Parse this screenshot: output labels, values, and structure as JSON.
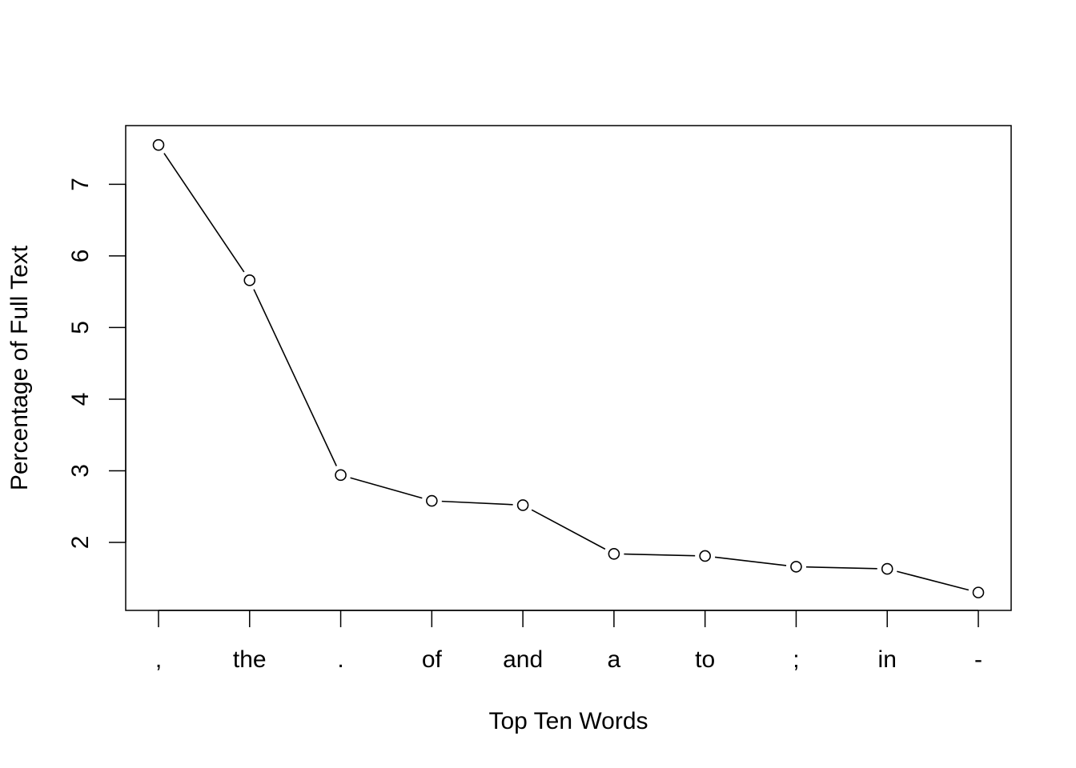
{
  "chart_data": {
    "type": "line",
    "title": "",
    "xlabel": "Top Ten Words",
    "ylabel": "Percentage of Full Text",
    "categories": [
      ",",
      "the",
      ".",
      "of",
      "and",
      "a",
      "to",
      ";",
      "in",
      "-"
    ],
    "series": [
      {
        "values": [
          7.55,
          5.66,
          2.94,
          2.58,
          2.52,
          1.84,
          1.81,
          1.66,
          1.63,
          1.3
        ]
      }
    ],
    "yticks": [
      2,
      3,
      4,
      5,
      6,
      7
    ],
    "ylim": [
      1.05,
      7.82
    ],
    "grid": false,
    "legend": "none",
    "marker": "open-circle",
    "line_color": "#000000"
  }
}
